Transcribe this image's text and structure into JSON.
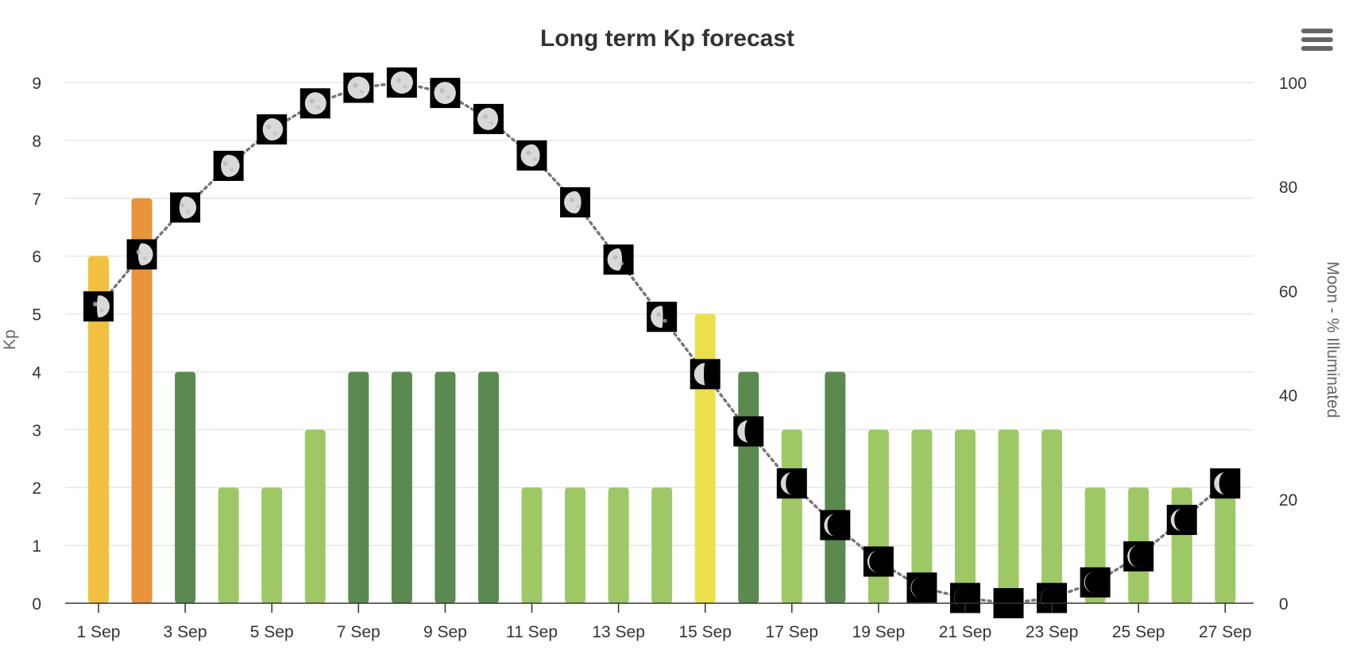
{
  "chart_data": {
    "type": "bar",
    "title": "Long term Kp forecast",
    "ylabel": "Kp",
    "y2label": "Moon - % Illuminated",
    "ylim": [
      0,
      9
    ],
    "y2lim": [
      0,
      100
    ],
    "yticks": [
      "0",
      "1",
      "2",
      "3",
      "4",
      "5",
      "6",
      "7",
      "8",
      "9"
    ],
    "y2ticks": [
      "0",
      "20",
      "40",
      "60",
      "80",
      "100"
    ],
    "categories": [
      "1 Sep",
      "2 Sep",
      "3 Sep",
      "4 Sep",
      "5 Sep",
      "6 Sep",
      "7 Sep",
      "8 Sep",
      "9 Sep",
      "10 Sep",
      "11 Sep",
      "12 Sep",
      "13 Sep",
      "14 Sep",
      "15 Sep",
      "16 Sep",
      "17 Sep",
      "18 Sep",
      "19 Sep",
      "20 Sep",
      "21 Sep",
      "22 Sep",
      "23 Sep",
      "24 Sep",
      "25 Sep",
      "26 Sep",
      "27 Sep"
    ],
    "xtick_labels": [
      "1 Sep",
      "3 Sep",
      "5 Sep",
      "7 Sep",
      "9 Sep",
      "11 Sep",
      "13 Sep",
      "15 Sep",
      "17 Sep",
      "19 Sep",
      "21 Sep",
      "23 Sep",
      "25 Sep",
      "27 Sep"
    ],
    "series": [
      {
        "type": "bar",
        "values": [
          6,
          7,
          4,
          2,
          2,
          3,
          4,
          4,
          4,
          4,
          2,
          2,
          2,
          2,
          5,
          4,
          3,
          4,
          3,
          3,
          3,
          3,
          3,
          2,
          2,
          2,
          2
        ],
        "colors": [
          "#f1c040",
          "#e8943a",
          "#5a8a50",
          "#9dc865",
          "#9dc865",
          "#9dc865",
          "#5a8a50",
          "#5a8a50",
          "#5a8a50",
          "#5a8a50",
          "#9dc865",
          "#9dc865",
          "#9dc865",
          "#9dc865",
          "#ebe04a",
          "#5a8a50",
          "#9dc865",
          "#5a8a50",
          "#9dc865",
          "#9dc865",
          "#9dc865",
          "#9dc865",
          "#9dc865",
          "#9dc865",
          "#9dc865",
          "#9dc865",
          "#9dc865"
        ]
      },
      {
        "type": "line",
        "axis": "right",
        "style": "dotted",
        "marker": "moon-phase-icon",
        "values": [
          57,
          67,
          76,
          84,
          91,
          96,
          99,
          100,
          98,
          93,
          86,
          77,
          66,
          55,
          44,
          33,
          23,
          15,
          8,
          3,
          1,
          0,
          1,
          4,
          9,
          16,
          23
        ]
      }
    ],
    "grid": true,
    "legend": "none"
  },
  "colors": {
    "strong": "#5a8a50",
    "quiet": "#9dc865",
    "yellow": "#ebe04a",
    "amber": "#f1c040",
    "orange": "#e8943a",
    "moon_line": "#777777"
  },
  "menu": {
    "icon": "hamburger-menu-icon"
  }
}
